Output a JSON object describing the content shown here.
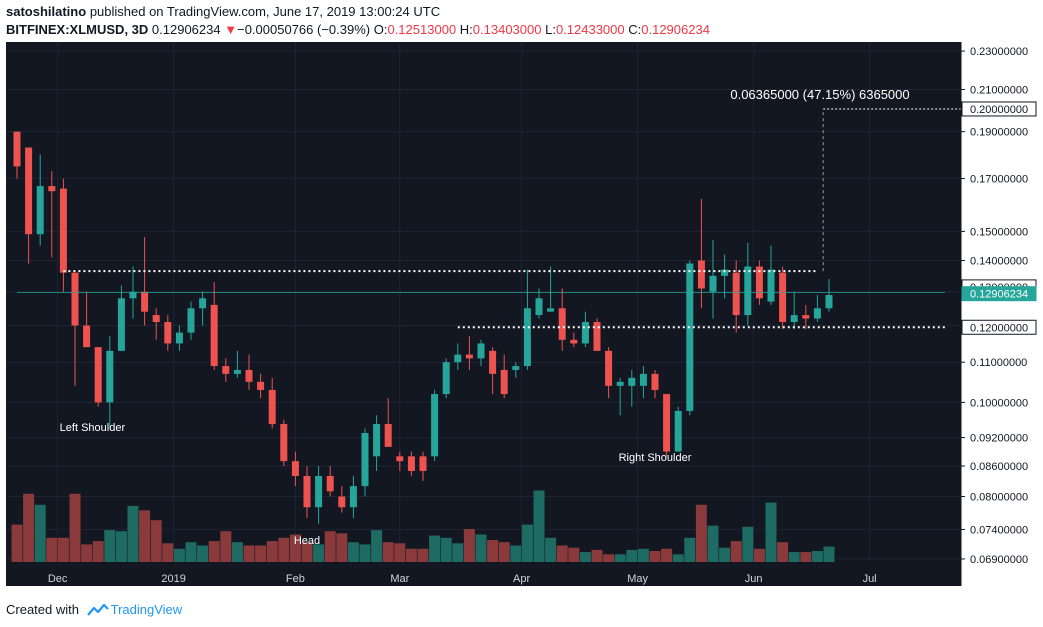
{
  "header": {
    "author": "satoshilatino",
    "published": "published on TradingView.com, June 17, 2019 13:00:24 UTC",
    "symbol": "BITFINEX:XLMUSD, 3D",
    "last": "0.12906234",
    "change_arrow": "▼",
    "change": "−0.00050766 (−0.39%)",
    "o_label": "O:",
    "o": "0.12513000",
    "h_label": "H:",
    "h": "0.13403000",
    "l_label": "L:",
    "l": "0.12433000",
    "c_label": "C:",
    "c": "0.12906234"
  },
  "footer": {
    "created_with": "Created with",
    "brand": "TradingView"
  },
  "colors": {
    "background": "#131722",
    "up": "#26a69a",
    "down": "#ef5350",
    "vol_up": "#1e6b64",
    "vol_down": "#8b3a3c",
    "text": "#d1d4dc",
    "axis_bg": "#ffffff"
  },
  "chart_data": {
    "type": "candlestick",
    "yscale": "log",
    "ylim": [
      0.0685,
      0.235
    ],
    "y_ticks": [
      "0.23000000",
      "0.21000000",
      "0.19000000",
      "0.17000000",
      "0.15000000",
      "0.14000000",
      "0.13000000",
      "0.12000000",
      "0.11000000",
      "0.10000000",
      "0.09200000",
      "0.08600000",
      "0.08000000",
      "0.07400000",
      "0.06900000"
    ],
    "x_labels": [
      {
        "label": "Dec",
        "index": 3.5
      },
      {
        "label": "2019",
        "index": 13.5
      },
      {
        "label": "Feb",
        "index": 24
      },
      {
        "label": "Mar",
        "index": 33
      },
      {
        "label": "Apr",
        "index": 43.5
      },
      {
        "label": "May",
        "index": 53.5
      },
      {
        "label": "Jun",
        "index": 63.5
      },
      {
        "label": "Jul",
        "index": 73.5
      }
    ],
    "candles": [
      {
        "o": 0.19,
        "h": 0.19,
        "l": 0.17,
        "c": 0.175
      },
      {
        "o": 0.183,
        "h": 0.183,
        "l": 0.139,
        "c": 0.149
      },
      {
        "o": 0.149,
        "h": 0.18,
        "l": 0.145,
        "c": 0.167
      },
      {
        "o": 0.167,
        "h": 0.173,
        "l": 0.141,
        "c": 0.165
      },
      {
        "o": 0.166,
        "h": 0.17,
        "l": 0.13,
        "c": 0.136
      },
      {
        "o": 0.136,
        "h": 0.136,
        "l": 0.104,
        "c": 0.12
      },
      {
        "o": 0.12,
        "h": 0.13,
        "l": 0.114,
        "c": 0.114
      },
      {
        "o": 0.114,
        "h": 0.114,
        "l": 0.099,
        "c": 0.1
      },
      {
        "o": 0.1,
        "h": 0.117,
        "l": 0.094,
        "c": 0.113
      },
      {
        "o": 0.113,
        "h": 0.132,
        "l": 0.113,
        "c": 0.128
      },
      {
        "o": 0.128,
        "h": 0.138,
        "l": 0.122,
        "c": 0.13
      },
      {
        "o": 0.13,
        "h": 0.148,
        "l": 0.12,
        "c": 0.124
      },
      {
        "o": 0.123,
        "h": 0.125,
        "l": 0.116,
        "c": 0.121
      },
      {
        "o": 0.121,
        "h": 0.123,
        "l": 0.113,
        "c": 0.115
      },
      {
        "o": 0.115,
        "h": 0.12,
        "l": 0.113,
        "c": 0.118
      },
      {
        "o": 0.118,
        "h": 0.127,
        "l": 0.116,
        "c": 0.125
      },
      {
        "o": 0.125,
        "h": 0.13,
        "l": 0.12,
        "c": 0.128
      },
      {
        "o": 0.126,
        "h": 0.133,
        "l": 0.108,
        "c": 0.109
      },
      {
        "o": 0.109,
        "h": 0.111,
        "l": 0.105,
        "c": 0.107
      },
      {
        "o": 0.107,
        "h": 0.113,
        "l": 0.106,
        "c": 0.108
      },
      {
        "o": 0.108,
        "h": 0.112,
        "l": 0.103,
        "c": 0.105
      },
      {
        "o": 0.105,
        "h": 0.107,
        "l": 0.101,
        "c": 0.103
      },
      {
        "o": 0.103,
        "h": 0.106,
        "l": 0.094,
        "c": 0.095
      },
      {
        "o": 0.095,
        "h": 0.096,
        "l": 0.086,
        "c": 0.087
      },
      {
        "o": 0.087,
        "h": 0.089,
        "l": 0.082,
        "c": 0.084
      },
      {
        "o": 0.084,
        "h": 0.086,
        "l": 0.076,
        "c": 0.078
      },
      {
        "o": 0.078,
        "h": 0.086,
        "l": 0.075,
        "c": 0.084
      },
      {
        "o": 0.084,
        "h": 0.086,
        "l": 0.08,
        "c": 0.081
      },
      {
        "o": 0.08,
        "h": 0.082,
        "l": 0.077,
        "c": 0.078
      },
      {
        "o": 0.078,
        "h": 0.084,
        "l": 0.076,
        "c": 0.082
      },
      {
        "o": 0.082,
        "h": 0.094,
        "l": 0.08,
        "c": 0.093
      },
      {
        "o": 0.088,
        "h": 0.097,
        "l": 0.085,
        "c": 0.095
      },
      {
        "o": 0.095,
        "h": 0.101,
        "l": 0.09,
        "c": 0.09
      },
      {
        "o": 0.088,
        "h": 0.089,
        "l": 0.085,
        "c": 0.087
      },
      {
        "o": 0.088,
        "h": 0.089,
        "l": 0.084,
        "c": 0.085
      },
      {
        "o": 0.088,
        "h": 0.089,
        "l": 0.083,
        "c": 0.085
      },
      {
        "o": 0.088,
        "h": 0.103,
        "l": 0.087,
        "c": 0.102
      },
      {
        "o": 0.102,
        "h": 0.111,
        "l": 0.101,
        "c": 0.11
      },
      {
        "o": 0.11,
        "h": 0.115,
        "l": 0.108,
        "c": 0.112
      },
      {
        "o": 0.112,
        "h": 0.117,
        "l": 0.108,
        "c": 0.111
      },
      {
        "o": 0.111,
        "h": 0.116,
        "l": 0.109,
        "c": 0.115
      },
      {
        "o": 0.113,
        "h": 0.114,
        "l": 0.102,
        "c": 0.107
      },
      {
        "o": 0.108,
        "h": 0.112,
        "l": 0.101,
        "c": 0.102
      },
      {
        "o": 0.108,
        "h": 0.11,
        "l": 0.106,
        "c": 0.109
      },
      {
        "o": 0.109,
        "h": 0.137,
        "l": 0.108,
        "c": 0.125
      },
      {
        "o": 0.123,
        "h": 0.131,
        "l": 0.122,
        "c": 0.128
      },
      {
        "o": 0.124,
        "h": 0.138,
        "l": 0.124,
        "c": 0.125
      },
      {
        "o": 0.125,
        "h": 0.131,
        "l": 0.113,
        "c": 0.116
      },
      {
        "o": 0.116,
        "h": 0.118,
        "l": 0.114,
        "c": 0.115
      },
      {
        "o": 0.115,
        "h": 0.124,
        "l": 0.114,
        "c": 0.121
      },
      {
        "o": 0.121,
        "h": 0.122,
        "l": 0.114,
        "c": 0.113
      },
      {
        "o": 0.113,
        "h": 0.114,
        "l": 0.101,
        "c": 0.104
      },
      {
        "o": 0.104,
        "h": 0.106,
        "l": 0.097,
        "c": 0.105
      },
      {
        "o": 0.104,
        "h": 0.108,
        "l": 0.099,
        "c": 0.106
      },
      {
        "o": 0.104,
        "h": 0.109,
        "l": 0.101,
        "c": 0.107
      },
      {
        "o": 0.107,
        "h": 0.108,
        "l": 0.101,
        "c": 0.103
      },
      {
        "o": 0.102,
        "h": 0.102,
        "l": 0.088,
        "c": 0.089
      },
      {
        "o": 0.089,
        "h": 0.099,
        "l": 0.089,
        "c": 0.098
      },
      {
        "o": 0.098,
        "h": 0.14,
        "l": 0.097,
        "c": 0.139
      },
      {
        "o": 0.14,
        "h": 0.162,
        "l": 0.125,
        "c": 0.131
      },
      {
        "o": 0.13,
        "h": 0.147,
        "l": 0.122,
        "c": 0.135
      },
      {
        "o": 0.135,
        "h": 0.142,
        "l": 0.128,
        "c": 0.137
      },
      {
        "o": 0.136,
        "h": 0.14,
        "l": 0.118,
        "c": 0.123
      },
      {
        "o": 0.123,
        "h": 0.146,
        "l": 0.12,
        "c": 0.138
      },
      {
        "o": 0.138,
        "h": 0.14,
        "l": 0.126,
        "c": 0.128
      },
      {
        "o": 0.127,
        "h": 0.145,
        "l": 0.126,
        "c": 0.137
      },
      {
        "o": 0.136,
        "h": 0.138,
        "l": 0.119,
        "c": 0.121
      },
      {
        "o": 0.121,
        "h": 0.13,
        "l": 0.119,
        "c": 0.123
      },
      {
        "o": 0.123,
        "h": 0.126,
        "l": 0.119,
        "c": 0.122
      },
      {
        "o": 0.122,
        "h": 0.129,
        "l": 0.121,
        "c": 0.125
      },
      {
        "o": 0.125,
        "h": 0.134,
        "l": 0.124,
        "c": 0.129
      }
    ],
    "volumes": [
      0.34,
      0.62,
      0.52,
      0.22,
      0.22,
      0.62,
      0.16,
      0.19,
      0.29,
      0.28,
      0.51,
      0.47,
      0.38,
      0.17,
      0.12,
      0.18,
      0.15,
      0.19,
      0.28,
      0.18,
      0.15,
      0.15,
      0.19,
      0.22,
      0.25,
      0.18,
      0.16,
      0.28,
      0.26,
      0.18,
      0.16,
      0.29,
      0.18,
      0.17,
      0.12,
      0.12,
      0.24,
      0.22,
      0.17,
      0.3,
      0.25,
      0.2,
      0.18,
      0.15,
      0.34,
      0.65,
      0.22,
      0.15,
      0.13,
      0.09,
      0.11,
      0.07,
      0.07,
      0.11,
      0.12,
      0.1,
      0.12,
      0.07,
      0.22,
      0.52,
      0.33,
      0.13,
      0.19,
      0.32,
      0.12,
      0.54,
      0.18,
      0.09,
      0.09,
      0.1,
      0.14
    ],
    "levels": [
      {
        "price": 0.1365,
        "from": 4,
        "to": 69,
        "color": "#ffffff",
        "label": ""
      },
      {
        "price": 0.1195,
        "from": 38,
        "to": 80,
        "color": "#ffffff",
        "label": ""
      },
      {
        "price": 0.1298,
        "from": 0,
        "to": 80,
        "color": "#26a69a",
        "label": ""
      }
    ],
    "measure": {
      "label": "0.06365000 (47.15%) 6365000",
      "target_price": 0.2005,
      "from_price": 0.1365,
      "from_index": 69.5
    },
    "annotations": [
      {
        "text": "Left Shoulder",
        "index": 6.5,
        "price": 0.0935
      },
      {
        "text": "Head",
        "index": 25,
        "price": 0.0715
      },
      {
        "text": "Right Shoulder",
        "index": 55,
        "price": 0.087
      }
    ],
    "price_tags": [
      {
        "text": "0.20000000",
        "price": 0.2005,
        "bg": "#ffffff",
        "fg": "#131722",
        "border": "#131722"
      },
      {
        "text": "0.13000000",
        "price": 0.1315,
        "bg": "#ffffff",
        "fg": "#131722",
        "border": "#131722"
      },
      {
        "text": "0.12906234",
        "price": 0.1294,
        "bg": "#26a69a",
        "fg": "#ffffff",
        "border": "#26a69a"
      },
      {
        "text": "0.12000000",
        "price": 0.1195,
        "bg": "#ffffff",
        "fg": "#131722",
        "border": "#131722"
      }
    ]
  }
}
